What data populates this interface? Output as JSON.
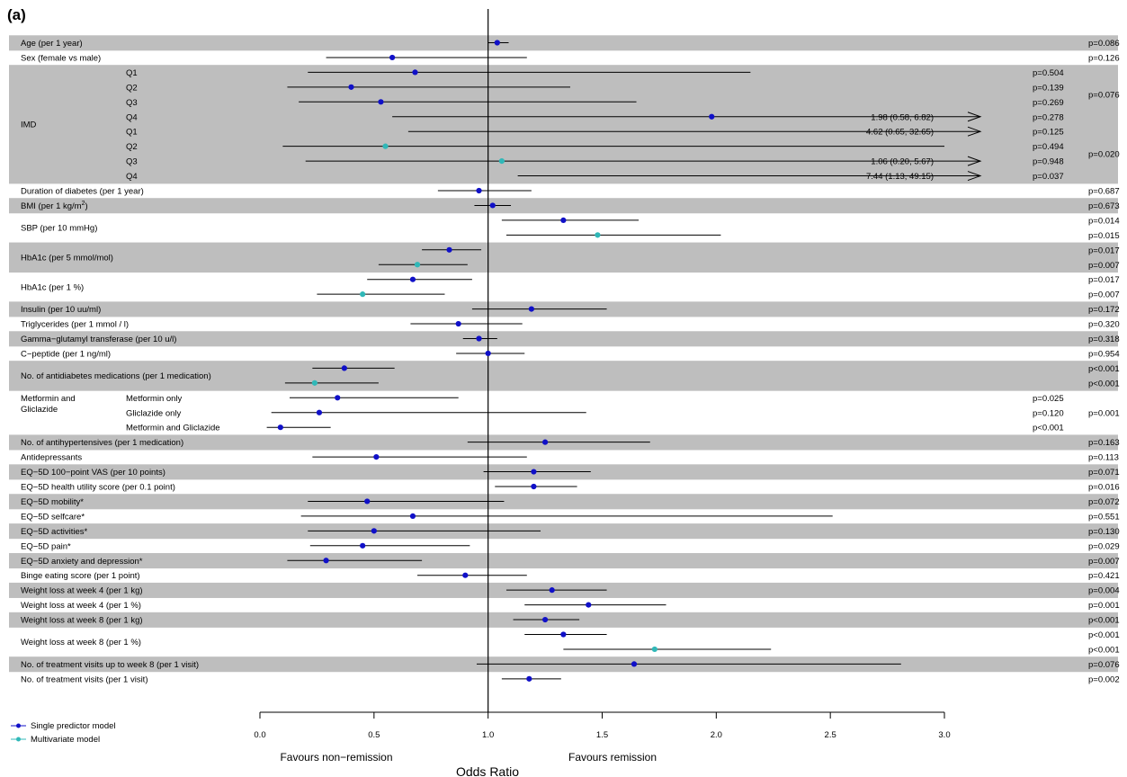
{
  "panel_label": "(a)",
  "colors": {
    "single": "#1010c8",
    "multi": "#30b8b8",
    "shade": "#bebebe"
  },
  "legend": [
    {
      "key": "single",
      "label": "Single predictor model"
    },
    {
      "key": "multi",
      "label": "Multivariate model"
    }
  ],
  "axis": {
    "xlabel": "Odds Ratio",
    "favours_left": "Favours non−remission",
    "favours_right": "Favours remission"
  },
  "chart_data": {
    "type": "forest",
    "xlim": [
      0,
      3
    ],
    "x_ticks": [
      0,
      0.5,
      1.0,
      1.5,
      2.0,
      2.5,
      3.0
    ],
    "x_tick_labels": [
      "0.0",
      "0.5",
      "1.0",
      "1.5",
      "2.0",
      "2.5",
      "3.0"
    ],
    "reference_line": 1.0,
    "rows": [
      {
        "label": "Age (per 1 year)",
        "sub": "",
        "series": "single",
        "or": 1.04,
        "lo": 1.0,
        "hi": 1.09,
        "p": "p=0.086",
        "p_group": "",
        "shade": true
      },
      {
        "label": "Sex (female vs male)",
        "sub": "",
        "series": "single",
        "or": 0.58,
        "lo": 0.29,
        "hi": 1.17,
        "p": "p=0.126",
        "p_group": "",
        "shade": false
      },
      {
        "label": "",
        "sub": "Q1",
        "series": "single",
        "or": 0.68,
        "lo": 0.21,
        "hi": 2.15,
        "p": "",
        "p_group": "p=0.504",
        "shade": true
      },
      {
        "label": "",
        "sub": "Q2",
        "series": "single",
        "or": 0.4,
        "lo": 0.12,
        "hi": 1.36,
        "p": "",
        "p_group": "p=0.139",
        "shade": true
      },
      {
        "label": "",
        "sub": "Q3",
        "series": "single",
        "or": 0.53,
        "lo": 0.17,
        "hi": 1.65,
        "p": "",
        "p_group": "p=0.269",
        "shade": true
      },
      {
        "label": "",
        "sub": "Q4",
        "series": "single",
        "or": 1.98,
        "lo": 0.58,
        "hi": 6.82,
        "p": "",
        "p_group": "p=0.278",
        "shade": true,
        "annot": "1.98 (0.58, 6.82)"
      },
      {
        "label": "",
        "sub": "Q1",
        "series": "single",
        "or": 4.62,
        "lo": 0.65,
        "hi": 32.65,
        "p": "",
        "p_group": "p=0.125",
        "shade": true,
        "annot": "4.62 (0.65, 32.65)"
      },
      {
        "label": "",
        "sub": "Q2",
        "series": "multi",
        "or": 0.55,
        "lo": 0.1,
        "hi": 3.0,
        "p": "",
        "p_group": "p=0.494",
        "shade": true
      },
      {
        "label": "",
        "sub": "Q3",
        "series": "multi",
        "or": 1.06,
        "lo": 0.2,
        "hi": 5.67,
        "p": "",
        "p_group": "p=0.948",
        "shade": true,
        "annot": "1.06 (0.20, 5.67)"
      },
      {
        "label": "",
        "sub": "Q4",
        "series": "multi",
        "or": 7.44,
        "lo": 1.13,
        "hi": 49.15,
        "p": "",
        "p_group": "p=0.037",
        "shade": true,
        "annot": "7.44 (1.13, 49.15)"
      },
      {
        "label": "Duration of diabetes (per 1 year)",
        "sub": "",
        "series": "single",
        "or": 0.96,
        "lo": 0.78,
        "hi": 1.19,
        "p": "p=0.687",
        "p_group": "",
        "shade": false
      },
      {
        "label": "BMI",
        "sub": "",
        "series": "single",
        "or": 1.02,
        "lo": 0.94,
        "hi": 1.1,
        "p": "p=0.673",
        "p_group": "",
        "shade": true
      },
      {
        "label": "",
        "sub": "",
        "series": "single",
        "or": 1.33,
        "lo": 1.06,
        "hi": 1.66,
        "p": "p=0.014",
        "p_group": "",
        "shade": false
      },
      {
        "label": "",
        "sub": "",
        "series": "multi",
        "or": 1.48,
        "lo": 1.08,
        "hi": 2.02,
        "p": "p=0.015",
        "p_group": "",
        "shade": false
      },
      {
        "label": "",
        "sub": "",
        "series": "single",
        "or": 0.83,
        "lo": 0.71,
        "hi": 0.97,
        "p": "p=0.017",
        "p_group": "",
        "shade": true
      },
      {
        "label": "",
        "sub": "",
        "series": "multi",
        "or": 0.69,
        "lo": 0.52,
        "hi": 0.91,
        "p": "p=0.007",
        "p_group": "",
        "shade": true
      },
      {
        "label": "",
        "sub": "",
        "series": "single",
        "or": 0.67,
        "lo": 0.47,
        "hi": 0.93,
        "p": "p=0.017",
        "p_group": "",
        "shade": false
      },
      {
        "label": "",
        "sub": "",
        "series": "multi",
        "or": 0.45,
        "lo": 0.25,
        "hi": 0.81,
        "p": "p=0.007",
        "p_group": "",
        "shade": false
      },
      {
        "label": "Insulin (per 10 uu/ml)",
        "sub": "",
        "series": "single",
        "or": 1.19,
        "lo": 0.93,
        "hi": 1.52,
        "p": "p=0.172",
        "p_group": "",
        "shade": true
      },
      {
        "label": "Triglycerides (per 1 mmol / l)",
        "sub": "",
        "series": "single",
        "or": 0.87,
        "lo": 0.66,
        "hi": 1.15,
        "p": "p=0.320",
        "p_group": "",
        "shade": false
      },
      {
        "label": "Gamma−glutamyl transferase (per 10 u/l)",
        "sub": "",
        "series": "single",
        "or": 0.96,
        "lo": 0.89,
        "hi": 1.04,
        "p": "p=0.318",
        "p_group": "",
        "shade": true
      },
      {
        "label": "C−peptide (per 1 ng/ml)",
        "sub": "",
        "series": "single",
        "or": 1.0,
        "lo": 0.86,
        "hi": 1.16,
        "p": "p=0.954",
        "p_group": "",
        "shade": false
      },
      {
        "label": "",
        "sub": "",
        "series": "single",
        "or": 0.37,
        "lo": 0.23,
        "hi": 0.59,
        "p": "p<0.001",
        "p_group": "",
        "shade": true
      },
      {
        "label": "",
        "sub": "",
        "series": "multi",
        "or": 0.24,
        "lo": 0.11,
        "hi": 0.52,
        "p": "p<0.001",
        "p_group": "",
        "shade": true
      },
      {
        "label": "",
        "sub": "Metformin only",
        "series": "single",
        "or": 0.34,
        "lo": 0.13,
        "hi": 0.87,
        "p": "",
        "p_group": "p=0.025",
        "shade": false
      },
      {
        "label": "",
        "sub": "Gliclazide only",
        "series": "single",
        "or": 0.26,
        "lo": 0.05,
        "hi": 1.43,
        "p": "",
        "p_group": "p=0.120",
        "shade": false
      },
      {
        "label": "",
        "sub": "Metformin and Gliclazide",
        "series": "single",
        "or": 0.09,
        "lo": 0.03,
        "hi": 0.31,
        "p": "",
        "p_group": "p<0.001",
        "shade": false
      },
      {
        "label": "No. of antihypertensives (per 1 medication)",
        "sub": "",
        "series": "single",
        "or": 1.25,
        "lo": 0.91,
        "hi": 1.71,
        "p": "p=0.163",
        "p_group": "",
        "shade": true
      },
      {
        "label": "Antidepressants",
        "sub": "",
        "series": "single",
        "or": 0.51,
        "lo": 0.23,
        "hi": 1.17,
        "p": "p=0.113",
        "p_group": "",
        "shade": false
      },
      {
        "label": "EQ−5D 100−point VAS (per 10 points)",
        "sub": "",
        "series": "single",
        "or": 1.2,
        "lo": 0.98,
        "hi": 1.45,
        "p": "p=0.071",
        "p_group": "",
        "shade": true
      },
      {
        "label": "EQ−5D health utility score (per 0.1 point)",
        "sub": "",
        "series": "single",
        "or": 1.2,
        "lo": 1.03,
        "hi": 1.39,
        "p": "p=0.016",
        "p_group": "",
        "shade": false
      },
      {
        "label": "EQ−5D mobility*",
        "sub": "",
        "series": "single",
        "or": 0.47,
        "lo": 0.21,
        "hi": 1.07,
        "p": "p=0.072",
        "p_group": "",
        "shade": true
      },
      {
        "label": "EQ−5D selfcare*",
        "sub": "",
        "series": "single",
        "or": 0.67,
        "lo": 0.18,
        "hi": 2.51,
        "p": "p=0.551",
        "p_group": "",
        "shade": false
      },
      {
        "label": "EQ−5D activities*",
        "sub": "",
        "series": "single",
        "or": 0.5,
        "lo": 0.21,
        "hi": 1.23,
        "p": "p=0.130",
        "p_group": "",
        "shade": true
      },
      {
        "label": "EQ−5D pain*",
        "sub": "",
        "series": "single",
        "or": 0.45,
        "lo": 0.22,
        "hi": 0.92,
        "p": "p=0.029",
        "p_group": "",
        "shade": false
      },
      {
        "label": "EQ−5D anxiety and depression*",
        "sub": "",
        "series": "single",
        "or": 0.29,
        "lo": 0.12,
        "hi": 0.71,
        "p": "p=0.007",
        "p_group": "",
        "shade": true
      },
      {
        "label": "Binge eating score (per 1 point)",
        "sub": "",
        "series": "single",
        "or": 0.9,
        "lo": 0.69,
        "hi": 1.17,
        "p": "p=0.421",
        "p_group": "",
        "shade": false
      },
      {
        "label": "Weight loss at week 4 (per 1 kg)",
        "sub": "",
        "series": "single",
        "or": 1.28,
        "lo": 1.08,
        "hi": 1.52,
        "p": "p=0.004",
        "p_group": "",
        "shade": true
      },
      {
        "label": "Weight loss at week 4 (per 1 %)",
        "sub": "",
        "series": "single",
        "or": 1.44,
        "lo": 1.16,
        "hi": 1.78,
        "p": "p=0.001",
        "p_group": "",
        "shade": false
      },
      {
        "label": "Weight loss at week 8 (per 1 kg)",
        "sub": "",
        "series": "single",
        "or": 1.25,
        "lo": 1.11,
        "hi": 1.4,
        "p": "p<0.001",
        "p_group": "",
        "shade": true
      },
      {
        "label": "",
        "sub": "",
        "series": "single",
        "or": 1.33,
        "lo": 1.16,
        "hi": 1.52,
        "p": "p<0.001",
        "p_group": "",
        "shade": false
      },
      {
        "label": "",
        "sub": "",
        "series": "multi",
        "or": 1.73,
        "lo": 1.33,
        "hi": 2.24,
        "p": "p<0.001",
        "p_group": "",
        "shade": false
      },
      {
        "label": "No. of treatment visits up to week 8 (per 1 visit)",
        "sub": "",
        "series": "single",
        "or": 1.64,
        "lo": 0.95,
        "hi": 2.81,
        "p": "p=0.076",
        "p_group": "",
        "shade": true
      },
      {
        "label": "No. of treatment visits (per 1 visit)",
        "sub": "",
        "series": "single",
        "or": 1.18,
        "lo": 1.06,
        "hi": 1.32,
        "p": "p=0.002",
        "p_group": "",
        "shade": false
      }
    ],
    "merged_labels": [
      {
        "text": "IMD",
        "rows": [
          2,
          9
        ]
      },
      {
        "text": "SBP (per 10 mmHg)",
        "rows": [
          12,
          13
        ]
      },
      {
        "text": "HbA1c (per 5 mmol/mol)",
        "rows": [
          14,
          15
        ]
      },
      {
        "text": "HbA1c (per 1 %)",
        "rows": [
          16,
          17
        ]
      },
      {
        "text": "No. of antidiabetes medications (per 1 medication)",
        "rows": [
          22,
          23
        ]
      },
      {
        "text": "Metformin and",
        "rows": [
          24,
          25
        ],
        "line": 0
      },
      {
        "text": "Gliclazide",
        "rows": [
          24,
          25
        ],
        "line": 1
      },
      {
        "text": "Weight loss at week 8 (per 1 %)",
        "rows": [
          40,
          41
        ]
      }
    ],
    "bmi_unit": {
      "prefix": "(per 1 kg/m",
      "sup": "2",
      "suffix": ")"
    },
    "group_pvalues": [
      {
        "text": "p=0.076",
        "rows": [
          2,
          5
        ]
      },
      {
        "text": "p=0.020",
        "rows": [
          6,
          9
        ]
      },
      {
        "text": "p=0.001",
        "rows": [
          24,
          26
        ]
      }
    ]
  }
}
